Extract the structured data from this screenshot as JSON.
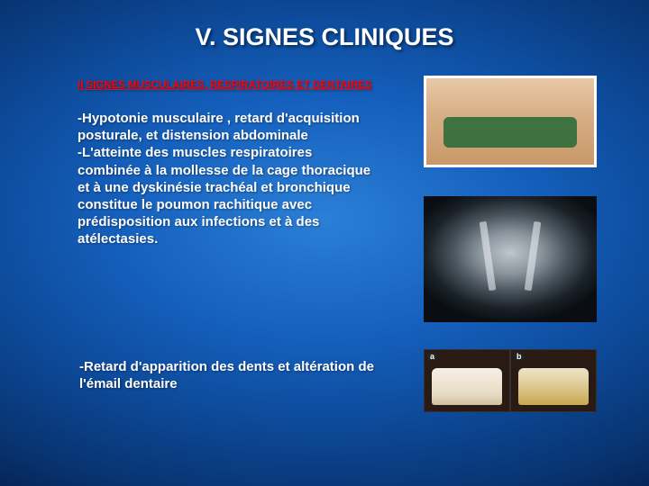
{
  "slide": {
    "title": "V. SIGNES CLINIQUES",
    "subheading": "II SIGNES MUSCULAIRES, RESPIRATOIRES ET DENTAIRES",
    "paragraph1": " -Hypotonie  musculaire , retard d'acquisition posturale, et distension abdominale\n  -L'atteinte des muscles respiratoires combinée à la mollesse de la cage thoracique et à une dyskinésie trachéal et bronchique constitue le poumon rachitique avec prédisposition aux infections et à des atélectasies.",
    "paragraph2": "  -Retard d'apparition des dents et altération de l'émail dentaire",
    "images": {
      "top": {
        "desc": "infant-abdominal-distension-photo"
      },
      "middle": {
        "desc": "chest-xray"
      },
      "bottom": {
        "desc": "dental-enamel-comparison",
        "tag_left": "a",
        "tag_right": "b"
      }
    },
    "colors": {
      "title": "#ffffff",
      "subheading": "#ff0000",
      "body": "#ffffff",
      "bg_inner": "#2b7fd6",
      "bg_outer": "#052050",
      "frame": "#ffffff"
    },
    "fontsizes": {
      "title": 27,
      "subheading": 11.5,
      "body": 15
    }
  }
}
